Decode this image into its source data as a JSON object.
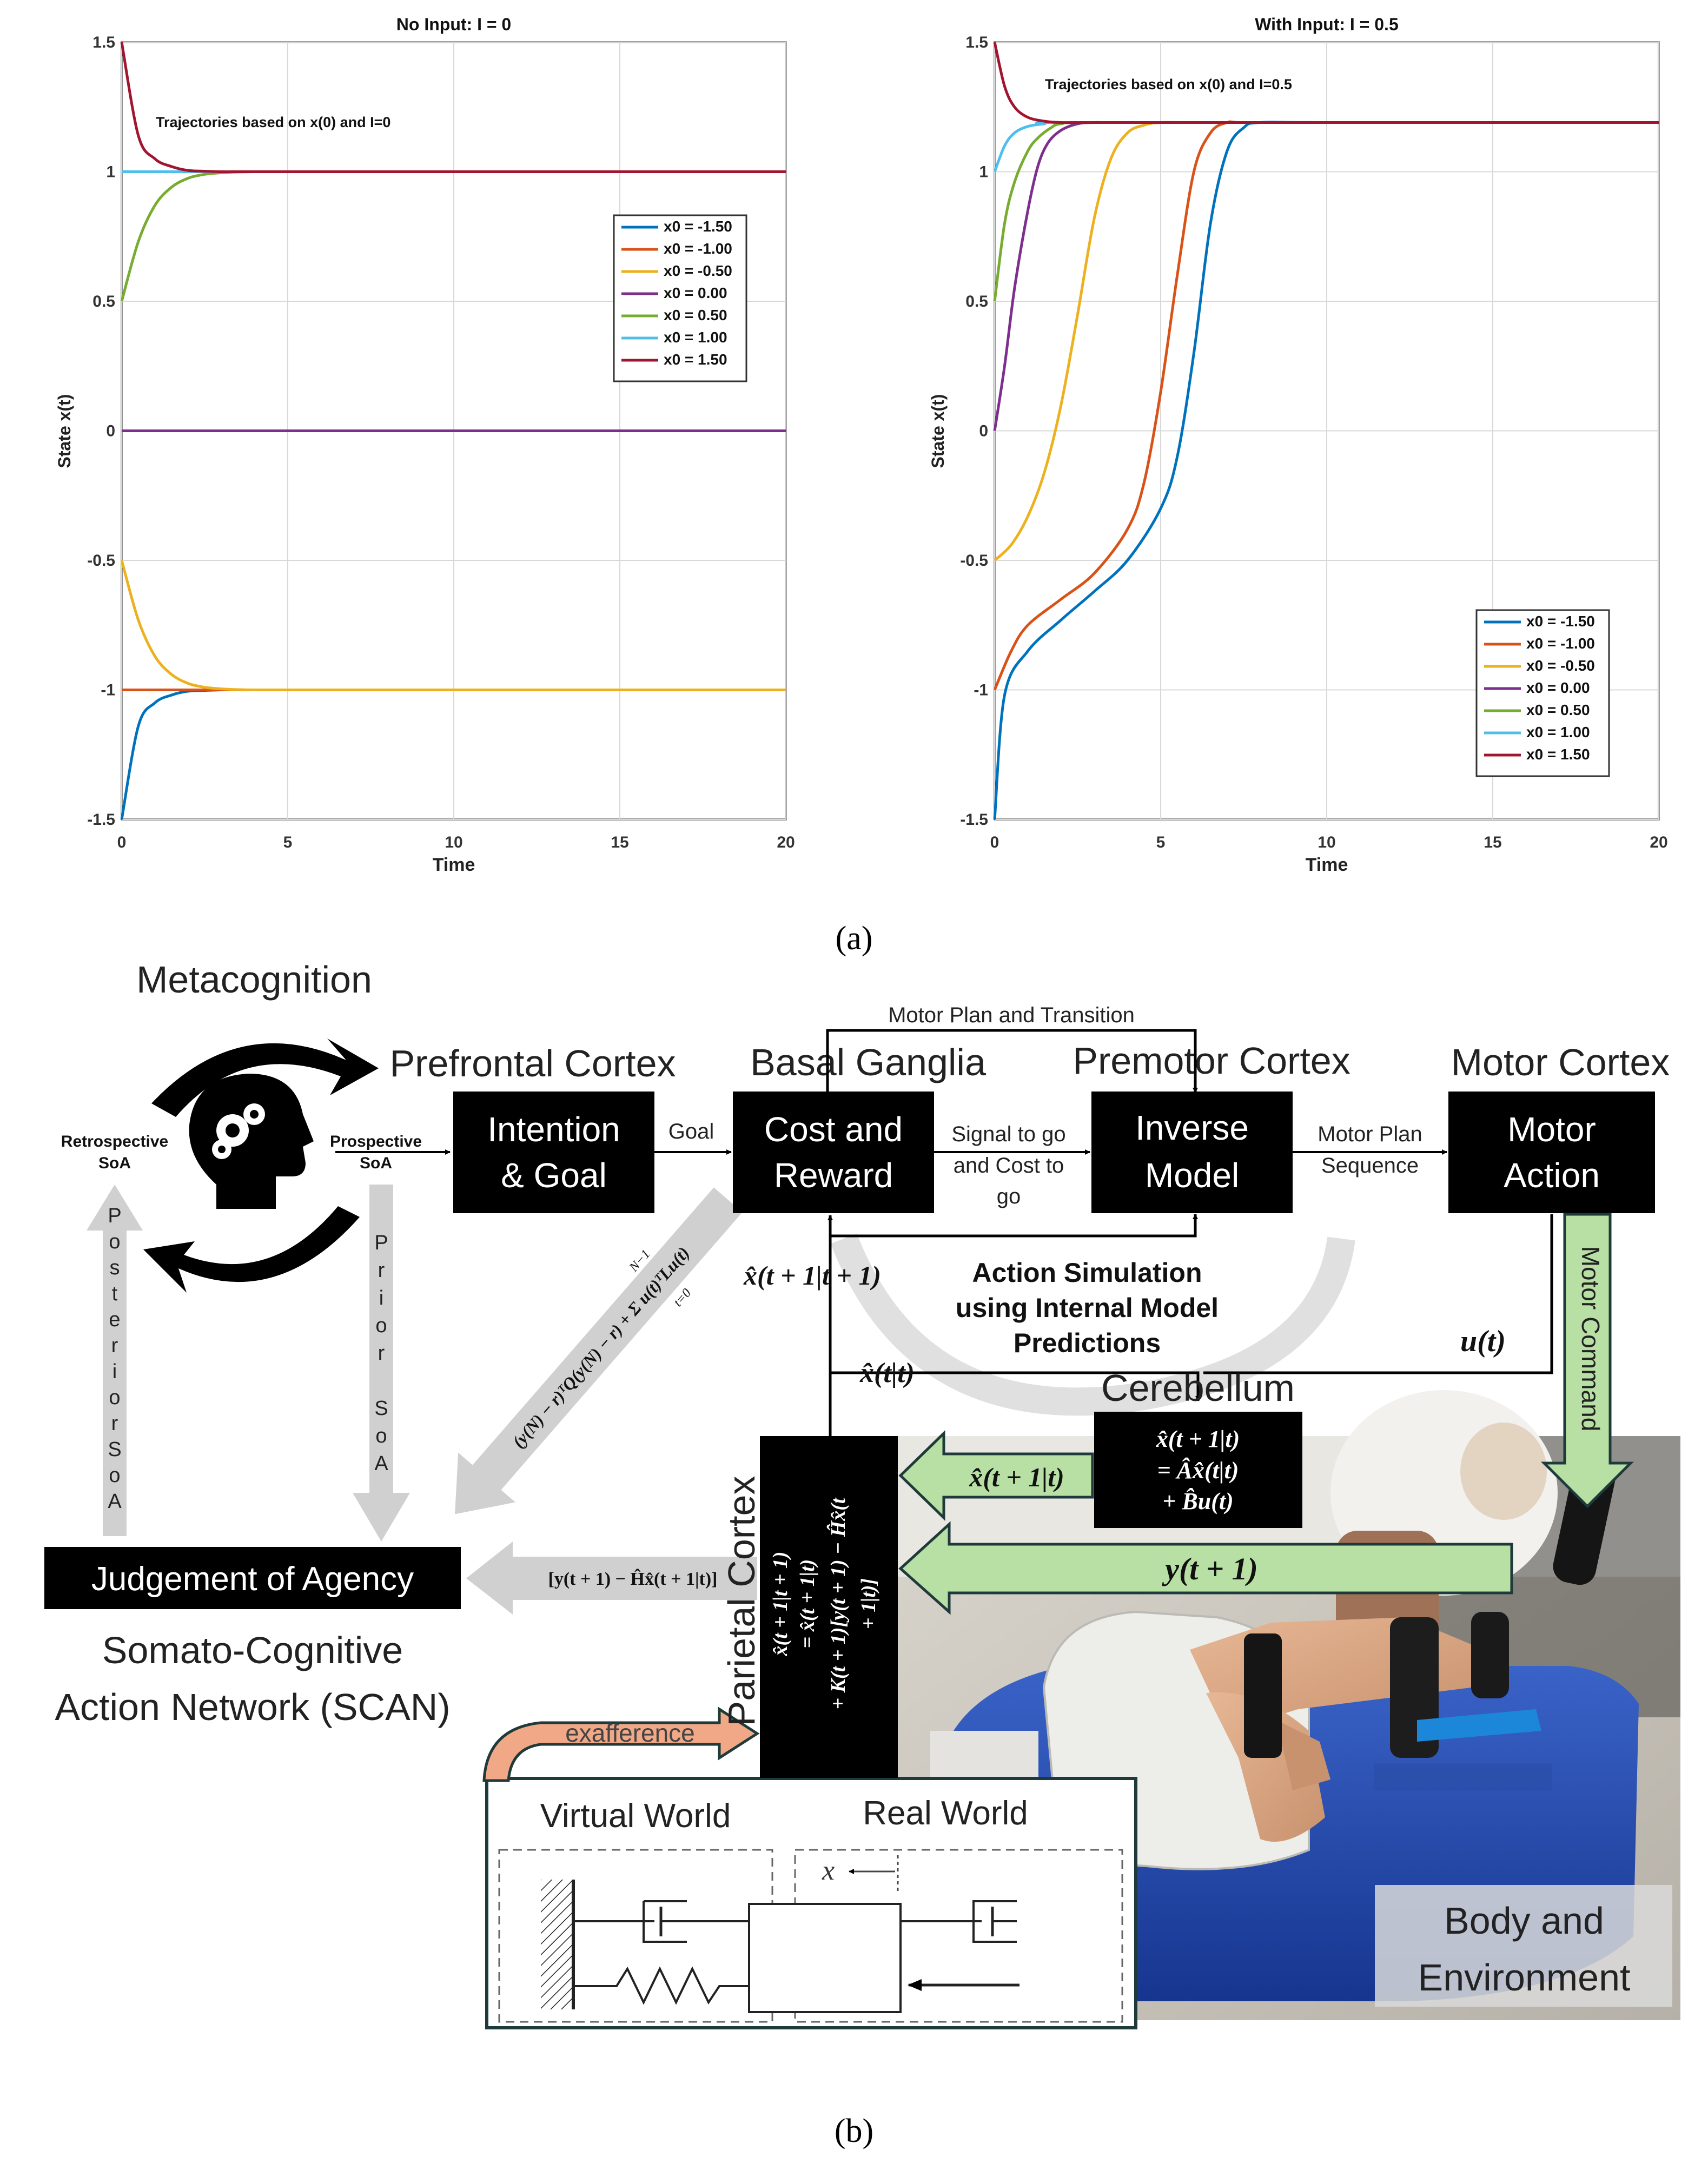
{
  "figure": {
    "label_a": "(a)",
    "label_b": "(b)"
  },
  "chart_data": [
    {
      "type": "line",
      "title": "No Input: I = 0",
      "annotation": "Trajectories based on x(0) and I=0",
      "xlabel": "Time",
      "ylabel": "State x(t)",
      "xlim": [
        0,
        20
      ],
      "ylim": [
        -1.5,
        1.5
      ],
      "xticks": [
        "0",
        "5",
        "10",
        "15",
        "20"
      ],
      "yticks": [
        "1.5",
        "1",
        "0.5",
        "0",
        "-0.5",
        "-1",
        "-1.5"
      ],
      "grid": true,
      "legend_position": "upper-right",
      "x": [
        0,
        0.5,
        1,
        1.5,
        2,
        2.5,
        3,
        3.5,
        4,
        5,
        6,
        8,
        10,
        12,
        15,
        20
      ],
      "series": [
        {
          "name": "x0 = -1.50",
          "color": "#0072BD",
          "values": [
            -1.5,
            -1.14,
            -1.05,
            -1.02,
            -1.005,
            -1.002,
            -1.0,
            -1.0,
            -1.0,
            -1.0,
            -1.0,
            -1.0,
            -1.0,
            -1.0,
            -1.0,
            -1.0
          ]
        },
        {
          "name": "x0 = -1.00",
          "color": "#D95319",
          "values": [
            -1.0,
            -1.0,
            -1.0,
            -1.0,
            -1.0,
            -1.0,
            -1.0,
            -1.0,
            -1.0,
            -1.0,
            -1.0,
            -1.0,
            -1.0,
            -1.0,
            -1.0,
            -1.0
          ]
        },
        {
          "name": "x0 = -0.50",
          "color": "#EDB120",
          "values": [
            -0.5,
            -0.73,
            -0.87,
            -0.94,
            -0.975,
            -0.99,
            -0.996,
            -0.999,
            -1.0,
            -1.0,
            -1.0,
            -1.0,
            -1.0,
            -1.0,
            -1.0,
            -1.0
          ]
        },
        {
          "name": "x0 = 0.00",
          "color": "#7E2F8E",
          "values": [
            0,
            0,
            0,
            0,
            0,
            0,
            0,
            0,
            0,
            0,
            0,
            0,
            0,
            0,
            0,
            0
          ]
        },
        {
          "name": "x0 = 0.50",
          "color": "#77AC30",
          "values": [
            0.5,
            0.73,
            0.87,
            0.94,
            0.975,
            0.99,
            0.996,
            0.999,
            1.0,
            1.0,
            1.0,
            1.0,
            1.0,
            1.0,
            1.0,
            1.0
          ]
        },
        {
          "name": "x0 = 1.00",
          "color": "#4DBEEE",
          "values": [
            1.0,
            1.0,
            1.0,
            1.0,
            1.0,
            1.0,
            1.0,
            1.0,
            1.0,
            1.0,
            1.0,
            1.0,
            1.0,
            1.0,
            1.0,
            1.0
          ]
        },
        {
          "name": "x0 = 1.50",
          "color": "#A2142F",
          "values": [
            1.5,
            1.14,
            1.05,
            1.02,
            1.005,
            1.002,
            1.0,
            1.0,
            1.0,
            1.0,
            1.0,
            1.0,
            1.0,
            1.0,
            1.0,
            1.0
          ]
        }
      ]
    },
    {
      "type": "line",
      "title": "With Input: I = 0.5",
      "annotation": "Trajectories based on x(0) and I=0.5",
      "xlabel": "Time",
      "ylabel": "State x(t)",
      "xlim": [
        0,
        20
      ],
      "ylim": [
        -1.5,
        1.5
      ],
      "xticks": [
        "0",
        "5",
        "10",
        "15",
        "20"
      ],
      "yticks": [
        "1.5",
        "1",
        "0.5",
        "0",
        "-0.5",
        "-1",
        "-1.5"
      ],
      "grid": true,
      "legend_position": "lower-right",
      "series": [
        {
          "name": "x0 = -1.50",
          "color": "#0072BD",
          "x": [
            0,
            0.3,
            1,
            2,
            3,
            4,
            5,
            5.5,
            6,
            6.5,
            7,
            7.5,
            8,
            10,
            20
          ],
          "values": [
            -1.5,
            -1.02,
            -0.85,
            -0.73,
            -0.62,
            -0.5,
            -0.3,
            -0.1,
            0.3,
            0.8,
            1.08,
            1.17,
            1.19,
            1.19,
            1.19
          ]
        },
        {
          "name": "x0 = -1.00",
          "color": "#D95319",
          "x": [
            0,
            0.5,
            1,
            2,
            3,
            4,
            4.5,
            5,
            5.5,
            6,
            6.5,
            7,
            7.5,
            10,
            20
          ],
          "values": [
            -1.0,
            -0.85,
            -0.75,
            -0.65,
            -0.55,
            -0.38,
            -0.2,
            0.15,
            0.6,
            1.0,
            1.15,
            1.19,
            1.19,
            1.19,
            1.19
          ]
        },
        {
          "name": "x0 = -0.50",
          "color": "#EDB120",
          "x": [
            0,
            0.5,
            1,
            1.5,
            2,
            2.5,
            3,
            3.5,
            4,
            4.5,
            5,
            6,
            10,
            20
          ],
          "values": [
            -0.5,
            -0.44,
            -0.33,
            -0.16,
            0.1,
            0.45,
            0.82,
            1.05,
            1.15,
            1.18,
            1.19,
            1.19,
            1.19,
            1.19
          ]
        },
        {
          "name": "x0 = 0.00",
          "color": "#7E2F8E",
          "x": [
            0,
            0.3,
            0.6,
            1,
            1.3,
            1.6,
            2,
            2.5,
            3,
            4,
            10,
            20
          ],
          "values": [
            0.0,
            0.25,
            0.55,
            0.85,
            1.02,
            1.11,
            1.16,
            1.185,
            1.19,
            1.19,
            1.19,
            1.19
          ]
        },
        {
          "name": "x0 = 0.50",
          "color": "#77AC30",
          "x": [
            0,
            0.3,
            0.6,
            1,
            1.3,
            1.7,
            2,
            3,
            10,
            20
          ],
          "values": [
            0.5,
            0.8,
            0.96,
            1.08,
            1.13,
            1.17,
            1.185,
            1.19,
            1.19,
            1.19
          ]
        },
        {
          "name": "x0 = 1.00",
          "color": "#4DBEEE",
          "x": [
            0,
            0.3,
            0.6,
            1,
            1.5,
            2,
            10,
            20
          ],
          "values": [
            1.0,
            1.1,
            1.15,
            1.175,
            1.185,
            1.19,
            1.19,
            1.19
          ]
        },
        {
          "name": "x0 = 1.50",
          "color": "#A2142F",
          "x": [
            0,
            0.3,
            0.6,
            1,
            1.5,
            2,
            3,
            10,
            20
          ],
          "values": [
            1.5,
            1.33,
            1.25,
            1.21,
            1.195,
            1.19,
            1.19,
            1.19,
            1.19
          ]
        }
      ]
    }
  ],
  "diagram": {
    "metacognition": "Metacognition",
    "prefrontal_cortex": "Prefrontal Cortex",
    "basal_ganglia": "Basal Ganglia",
    "premotor_cortex": "Premotor Cortex",
    "motor_cortex": "Motor Cortex",
    "motor_plan_transition": "Motor Plan and Transition",
    "intention_goal_1": "Intention",
    "intention_goal_2": "& Goal",
    "goal": "Goal",
    "cost_reward_1": "Cost and",
    "cost_reward_2": "Reward",
    "signal_to_go_1": "Signal to go",
    "signal_to_go_2": "and Cost to",
    "signal_to_go_3": "go",
    "inverse_model_1": "Inverse",
    "inverse_model_2": "Model",
    "motor_plan_seq_1": "Motor Plan",
    "motor_plan_seq_2": "Sequence",
    "motor_action_1": "Motor",
    "motor_action_2": "Action",
    "retrospective_1": "Retrospective",
    "retrospective_2": "SoA",
    "prospective_1": "Prospective",
    "prospective_2": "SoA",
    "posterior_soa": [
      "P",
      "o",
      "s",
      "t",
      "e",
      "r",
      "i",
      "o",
      "r",
      "S",
      "o",
      "A"
    ],
    "prior_soa": [
      "P",
      "r",
      "i",
      "o",
      "r",
      "",
      "S",
      "o",
      "A"
    ],
    "motor_command": "Motor Command",
    "action_simulation_1": "Action Simulation",
    "action_simulation_2": "using Internal Model",
    "action_simulation_3": "Predictions",
    "x_hat_tp1_tp1": "x̂(t + 1|t + 1)",
    "x_hat_t_t": "x̂(t|t)",
    "u_t": "u(t)",
    "cerebellum": "Cerebellum",
    "cerebellum_eq_1": "x̂(t + 1|t)",
    "cerebellum_eq_2": "= Âx̂(t|t)",
    "cerebellum_eq_3": "+ B̂u(t)",
    "x_hat_tp1_t": "x̂(t + 1|t)",
    "y_tp1": "y(t + 1)",
    "parietal_cortex": "Parietal Cortex",
    "parietal_eq_1": "x̂(t + 1|t + 1)",
    "parietal_eq_2": "= x̂(t + 1|t)",
    "parietal_eq_3": "+ K(t + 1)[y(t + 1) − Ĥx̂(t",
    "parietal_eq_4": "+ 1|t)]",
    "cost_formula": "(y(N) − r)ᵀQ(y(N) − r) + Σ u(t)ᵀLu(t)",
    "cost_formula_sum_top": "N−1",
    "cost_formula_sum_bottom": "t=0",
    "judgement": "Judgement of Agency",
    "innovation": "[y(t + 1) − Ĥx̂(t + 1|t)]",
    "scan_1": "Somato-Cognitive",
    "scan_2": "Action Network (SCAN)",
    "exafference": "exafference",
    "virtual_world": "Virtual World",
    "real_world": "Real World",
    "x_label": "x",
    "body_env_1": "Body and",
    "body_env_2": "Environment"
  }
}
